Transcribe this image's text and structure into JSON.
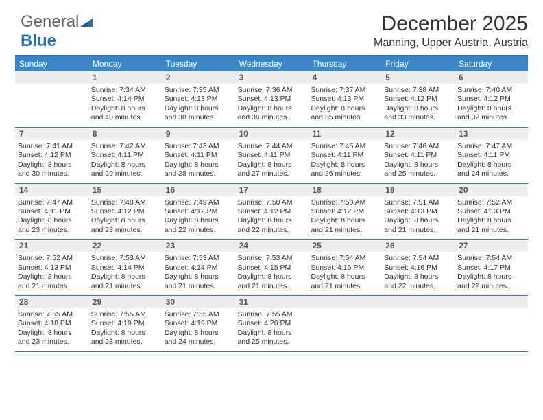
{
  "logo": {
    "text1": "General",
    "text2": "Blue"
  },
  "header": {
    "month_year": "December 2025",
    "location": "Manning, Upper Austria, Austria"
  },
  "colors": {
    "header_bar": "#3a87c8",
    "border": "#2a72b5",
    "daynum_bg": "#eceef0",
    "text": "#333333",
    "logo_blue": "#2a72b5"
  },
  "fonts": {
    "title_size": 30,
    "location_size": 16,
    "dayhead_size": 12,
    "daynum_size": 12,
    "body_size": 10.5
  },
  "day_names": [
    "Sunday",
    "Monday",
    "Tuesday",
    "Wednesday",
    "Thursday",
    "Friday",
    "Saturday"
  ],
  "weeks": [
    [
      null,
      {
        "n": "1",
        "sr": "Sunrise: 7:34 AM",
        "ss": "Sunset: 4:14 PM",
        "d1": "Daylight: 8 hours",
        "d2": "and 40 minutes."
      },
      {
        "n": "2",
        "sr": "Sunrise: 7:35 AM",
        "ss": "Sunset: 4:13 PM",
        "d1": "Daylight: 8 hours",
        "d2": "and 38 minutes."
      },
      {
        "n": "3",
        "sr": "Sunrise: 7:36 AM",
        "ss": "Sunset: 4:13 PM",
        "d1": "Daylight: 8 hours",
        "d2": "and 36 minutes."
      },
      {
        "n": "4",
        "sr": "Sunrise: 7:37 AM",
        "ss": "Sunset: 4:13 PM",
        "d1": "Daylight: 8 hours",
        "d2": "and 35 minutes."
      },
      {
        "n": "5",
        "sr": "Sunrise: 7:38 AM",
        "ss": "Sunset: 4:12 PM",
        "d1": "Daylight: 8 hours",
        "d2": "and 33 minutes."
      },
      {
        "n": "6",
        "sr": "Sunrise: 7:40 AM",
        "ss": "Sunset: 4:12 PM",
        "d1": "Daylight: 8 hours",
        "d2": "and 32 minutes."
      }
    ],
    [
      {
        "n": "7",
        "sr": "Sunrise: 7:41 AM",
        "ss": "Sunset: 4:12 PM",
        "d1": "Daylight: 8 hours",
        "d2": "and 30 minutes."
      },
      {
        "n": "8",
        "sr": "Sunrise: 7:42 AM",
        "ss": "Sunset: 4:11 PM",
        "d1": "Daylight: 8 hours",
        "d2": "and 29 minutes."
      },
      {
        "n": "9",
        "sr": "Sunrise: 7:43 AM",
        "ss": "Sunset: 4:11 PM",
        "d1": "Daylight: 8 hours",
        "d2": "and 28 minutes."
      },
      {
        "n": "10",
        "sr": "Sunrise: 7:44 AM",
        "ss": "Sunset: 4:11 PM",
        "d1": "Daylight: 8 hours",
        "d2": "and 27 minutes."
      },
      {
        "n": "11",
        "sr": "Sunrise: 7:45 AM",
        "ss": "Sunset: 4:11 PM",
        "d1": "Daylight: 8 hours",
        "d2": "and 26 minutes."
      },
      {
        "n": "12",
        "sr": "Sunrise: 7:46 AM",
        "ss": "Sunset: 4:11 PM",
        "d1": "Daylight: 8 hours",
        "d2": "and 25 minutes."
      },
      {
        "n": "13",
        "sr": "Sunrise: 7:47 AM",
        "ss": "Sunset: 4:11 PM",
        "d1": "Daylight: 8 hours",
        "d2": "and 24 minutes."
      }
    ],
    [
      {
        "n": "14",
        "sr": "Sunrise: 7:47 AM",
        "ss": "Sunset: 4:11 PM",
        "d1": "Daylight: 8 hours",
        "d2": "and 23 minutes."
      },
      {
        "n": "15",
        "sr": "Sunrise: 7:48 AM",
        "ss": "Sunset: 4:12 PM",
        "d1": "Daylight: 8 hours",
        "d2": "and 23 minutes."
      },
      {
        "n": "16",
        "sr": "Sunrise: 7:49 AM",
        "ss": "Sunset: 4:12 PM",
        "d1": "Daylight: 8 hours",
        "d2": "and 22 minutes."
      },
      {
        "n": "17",
        "sr": "Sunrise: 7:50 AM",
        "ss": "Sunset: 4:12 PM",
        "d1": "Daylight: 8 hours",
        "d2": "and 22 minutes."
      },
      {
        "n": "18",
        "sr": "Sunrise: 7:50 AM",
        "ss": "Sunset: 4:12 PM",
        "d1": "Daylight: 8 hours",
        "d2": "and 21 minutes."
      },
      {
        "n": "19",
        "sr": "Sunrise: 7:51 AM",
        "ss": "Sunset: 4:13 PM",
        "d1": "Daylight: 8 hours",
        "d2": "and 21 minutes."
      },
      {
        "n": "20",
        "sr": "Sunrise: 7:52 AM",
        "ss": "Sunset: 4:13 PM",
        "d1": "Daylight: 8 hours",
        "d2": "and 21 minutes."
      }
    ],
    [
      {
        "n": "21",
        "sr": "Sunrise: 7:52 AM",
        "ss": "Sunset: 4:13 PM",
        "d1": "Daylight: 8 hours",
        "d2": "and 21 minutes."
      },
      {
        "n": "22",
        "sr": "Sunrise: 7:53 AM",
        "ss": "Sunset: 4:14 PM",
        "d1": "Daylight: 8 hours",
        "d2": "and 21 minutes."
      },
      {
        "n": "23",
        "sr": "Sunrise: 7:53 AM",
        "ss": "Sunset: 4:14 PM",
        "d1": "Daylight: 8 hours",
        "d2": "and 21 minutes."
      },
      {
        "n": "24",
        "sr": "Sunrise: 7:53 AM",
        "ss": "Sunset: 4:15 PM",
        "d1": "Daylight: 8 hours",
        "d2": "and 21 minutes."
      },
      {
        "n": "25",
        "sr": "Sunrise: 7:54 AM",
        "ss": "Sunset: 4:16 PM",
        "d1": "Daylight: 8 hours",
        "d2": "and 21 minutes."
      },
      {
        "n": "26",
        "sr": "Sunrise: 7:54 AM",
        "ss": "Sunset: 4:16 PM",
        "d1": "Daylight: 8 hours",
        "d2": "and 22 minutes."
      },
      {
        "n": "27",
        "sr": "Sunrise: 7:54 AM",
        "ss": "Sunset: 4:17 PM",
        "d1": "Daylight: 8 hours",
        "d2": "and 22 minutes."
      }
    ],
    [
      {
        "n": "28",
        "sr": "Sunrise: 7:55 AM",
        "ss": "Sunset: 4:18 PM",
        "d1": "Daylight: 8 hours",
        "d2": "and 23 minutes."
      },
      {
        "n": "29",
        "sr": "Sunrise: 7:55 AM",
        "ss": "Sunset: 4:19 PM",
        "d1": "Daylight: 8 hours",
        "d2": "and 23 minutes."
      },
      {
        "n": "30",
        "sr": "Sunrise: 7:55 AM",
        "ss": "Sunset: 4:19 PM",
        "d1": "Daylight: 8 hours",
        "d2": "and 24 minutes."
      },
      {
        "n": "31",
        "sr": "Sunrise: 7:55 AM",
        "ss": "Sunset: 4:20 PM",
        "d1": "Daylight: 8 hours",
        "d2": "and 25 minutes."
      },
      null,
      null,
      null
    ]
  ]
}
